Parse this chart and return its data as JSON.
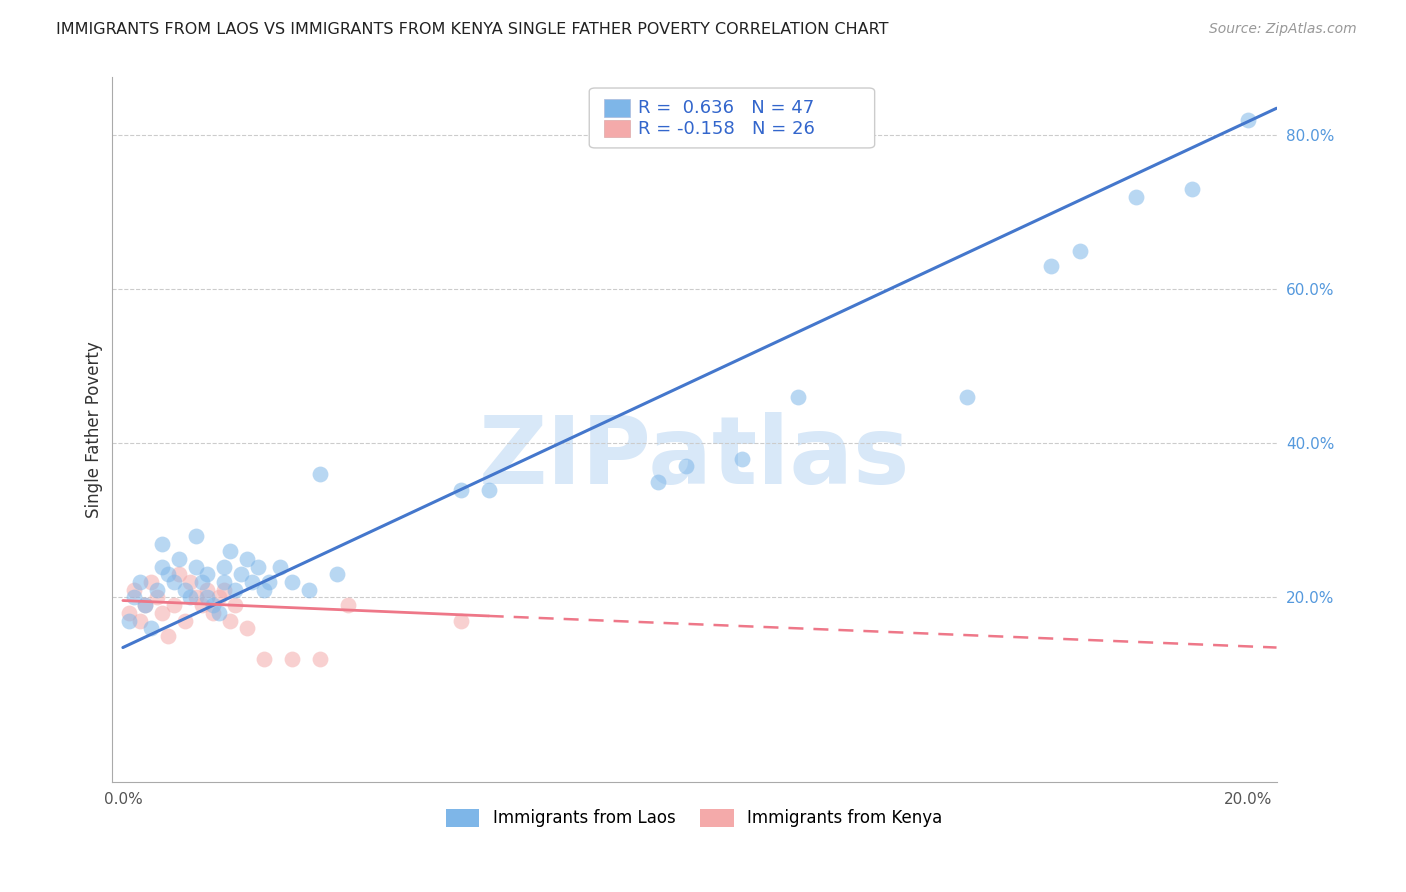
{
  "title": "IMMIGRANTS FROM LAOS VS IMMIGRANTS FROM KENYA SINGLE FATHER POVERTY CORRELATION CHART",
  "source": "Source: ZipAtlas.com",
  "ylabel": "Single Father Poverty",
  "xlim": [
    -0.002,
    0.205
  ],
  "ylim": [
    -0.04,
    0.875
  ],
  "xticks": [
    0.0,
    0.05,
    0.1,
    0.15,
    0.2
  ],
  "xtick_labels": [
    "0.0%",
    "",
    "",
    "",
    "20.0%"
  ],
  "yticks_right": [
    0.2,
    0.4,
    0.6,
    0.8
  ],
  "ytick_labels_right": [
    "20.0%",
    "40.0%",
    "60.0%",
    "80.0%"
  ],
  "legend_labels": [
    "Immigrants from Laos",
    "Immigrants from Kenya"
  ],
  "R_laos": 0.636,
  "N_laos": 47,
  "R_kenya": -0.158,
  "N_kenya": 26,
  "blue_color": "#7EB6E8",
  "pink_color": "#F4AAAA",
  "blue_line_color": "#4477CC",
  "pink_line_color": "#EE7788",
  "watermark_color": "#D8E8F8",
  "grid_color": "#CCCCCC",
  "scatter_alpha": 0.55,
  "scatter_size": 130,
  "blue_x": [
    0.001,
    0.002,
    0.003,
    0.004,
    0.005,
    0.006,
    0.007,
    0.007,
    0.008,
    0.009,
    0.01,
    0.011,
    0.012,
    0.013,
    0.013,
    0.014,
    0.015,
    0.015,
    0.016,
    0.017,
    0.018,
    0.018,
    0.019,
    0.02,
    0.021,
    0.022,
    0.023,
    0.024,
    0.025,
    0.026,
    0.028,
    0.03,
    0.033,
    0.035,
    0.038,
    0.06,
    0.065,
    0.095,
    0.1,
    0.11,
    0.12,
    0.15,
    0.165,
    0.17,
    0.18,
    0.19,
    0.2
  ],
  "blue_y": [
    0.17,
    0.2,
    0.22,
    0.19,
    0.16,
    0.21,
    0.24,
    0.27,
    0.23,
    0.22,
    0.25,
    0.21,
    0.2,
    0.28,
    0.24,
    0.22,
    0.2,
    0.23,
    0.19,
    0.18,
    0.22,
    0.24,
    0.26,
    0.21,
    0.23,
    0.25,
    0.22,
    0.24,
    0.21,
    0.22,
    0.24,
    0.22,
    0.21,
    0.36,
    0.23,
    0.34,
    0.34,
    0.35,
    0.37,
    0.38,
    0.46,
    0.46,
    0.63,
    0.65,
    0.72,
    0.73,
    0.82
  ],
  "pink_x": [
    0.001,
    0.002,
    0.003,
    0.004,
    0.005,
    0.006,
    0.007,
    0.008,
    0.009,
    0.01,
    0.011,
    0.012,
    0.013,
    0.014,
    0.015,
    0.016,
    0.017,
    0.018,
    0.019,
    0.02,
    0.022,
    0.025,
    0.03,
    0.035,
    0.04,
    0.06
  ],
  "pink_y": [
    0.18,
    0.21,
    0.17,
    0.19,
    0.22,
    0.2,
    0.18,
    0.15,
    0.19,
    0.23,
    0.17,
    0.22,
    0.2,
    0.19,
    0.21,
    0.18,
    0.2,
    0.21,
    0.17,
    0.19,
    0.16,
    0.12,
    0.12,
    0.12,
    0.19,
    0.17
  ],
  "blue_line_x0": 0.0,
  "blue_line_y0": 0.135,
  "blue_line_x1": 0.205,
  "blue_line_y1": 0.835,
  "pink_line_x0": 0.0,
  "pink_line_y0": 0.196,
  "pink_line_x1_solid": 0.065,
  "pink_line_y1_solid": 0.176,
  "pink_line_x1_dash": 0.205,
  "pink_line_y1_dash": 0.135
}
